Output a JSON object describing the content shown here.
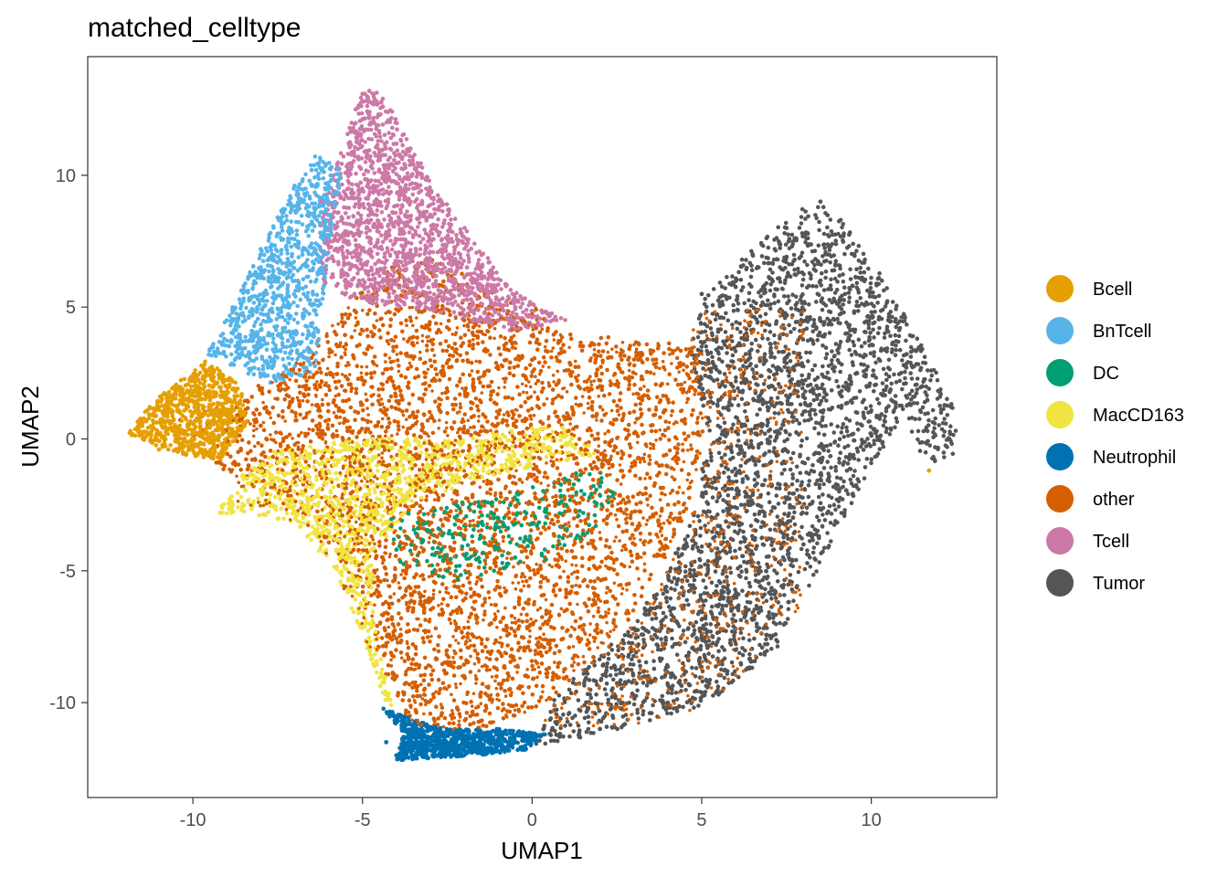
{
  "chart_data": {
    "type": "scatter",
    "title": "matched_celltype",
    "xlabel": "UMAP1",
    "ylabel": "UMAP2",
    "xlim": [
      -13.1,
      13.7
    ],
    "ylim": [
      -13.6,
      14.5
    ],
    "x_ticks": [
      -10,
      -5,
      0,
      5,
      10
    ],
    "x_tick_labels": [
      "-10",
      "-5",
      "0",
      "5",
      "10"
    ],
    "y_ticks": [
      -10,
      -5,
      0,
      5,
      10
    ],
    "y_tick_labels": [
      "-10",
      "-5",
      "0",
      "5",
      "10"
    ],
    "grid": false,
    "legend_position": "right",
    "series": [
      {
        "name": "Bcell",
        "color": "#E69F00",
        "x": [
          -11.6,
          -11.2,
          -10.8,
          -10.4,
          -10.0,
          -9.6,
          -11.0,
          -10.2,
          -9.3,
          11.7
        ],
        "y": [
          0.4,
          0.9,
          1.3,
          0.2,
          1.8,
          2.4,
          -0.4,
          -0.6,
          0.6,
          -1.2
        ]
      },
      {
        "name": "BnTcell",
        "color": "#56B4E9",
        "x": [
          -9.5,
          -9.0,
          -8.5,
          -8.0,
          -7.5,
          -7.0,
          -6.5,
          -8.2,
          -7.2,
          -6.2
        ],
        "y": [
          3.4,
          4.5,
          5.8,
          7.2,
          8.4,
          9.6,
          10.2,
          3.5,
          5.0,
          6.5
        ]
      },
      {
        "name": "DC",
        "color": "#009E73",
        "x": [
          -4.0,
          -3.0,
          -2.0,
          -1.0,
          0.0,
          1.0,
          2.0,
          -2.5,
          -0.5,
          1.5
        ],
        "y": [
          -4.2,
          -3.5,
          -3.8,
          -3.0,
          -3.2,
          -2.5,
          -1.8,
          -5.0,
          -4.5,
          -3.6
        ]
      },
      {
        "name": "MacCD163",
        "color": "#F0E442",
        "x": [
          -9.2,
          -8.4,
          -7.6,
          -6.8,
          -6.0,
          -5.0,
          -4.8,
          -4.4,
          -3.5,
          -1.5
        ],
        "y": [
          -2.8,
          -1.5,
          -0.5,
          -2.0,
          -3.5,
          -5.0,
          -7.0,
          -9.0,
          -0.8,
          -0.2
        ]
      },
      {
        "name": "Neutrophil",
        "color": "#0072B2",
        "x": [
          -4.3,
          -4.0,
          -3.6,
          -3.2,
          -2.8,
          -2.4,
          -2.0,
          -1.5,
          -1.0,
          -3.8
        ],
        "y": [
          -11.5,
          -12.0,
          -11.7,
          -12.0,
          -11.5,
          -11.8,
          -11.6,
          -11.8,
          -11.6,
          -10.8
        ]
      },
      {
        "name": "other",
        "color": "#D55E00",
        "x": [
          -8.0,
          -6.0,
          -4.0,
          -2.0,
          0.0,
          2.0,
          4.0,
          -3.0,
          -1.0,
          1.0,
          3.0,
          -5.0,
          -2.0,
          0.5
        ],
        "y": [
          0.5,
          2.0,
          3.5,
          4.5,
          3.0,
          2.0,
          1.5,
          -2.0,
          -4.0,
          -6.0,
          -8.0,
          -1.0,
          -9.0,
          0.5
        ]
      },
      {
        "name": "Tcell",
        "color": "#CC79A7",
        "x": [
          -5.2,
          -4.8,
          -4.4,
          -4.0,
          -3.5,
          -3.0,
          -2.5,
          -1.5,
          -0.5,
          -6.2
        ],
        "y": [
          12.5,
          13.2,
          12.6,
          11.2,
          9.5,
          8.5,
          7.6,
          6.2,
          5.2,
          9.0
        ]
      },
      {
        "name": "Tumor",
        "color": "#555555",
        "x": [
          5.0,
          6.5,
          7.5,
          8.5,
          9.5,
          10.5,
          11.5,
          12.3,
          8.0,
          6.0,
          4.0,
          2.0
        ],
        "y": [
          5.5,
          7.0,
          8.0,
          9.0,
          7.0,
          4.5,
          2.0,
          0.0,
          -4.0,
          -8.0,
          -10.0,
          -11.0
        ]
      }
    ]
  }
}
